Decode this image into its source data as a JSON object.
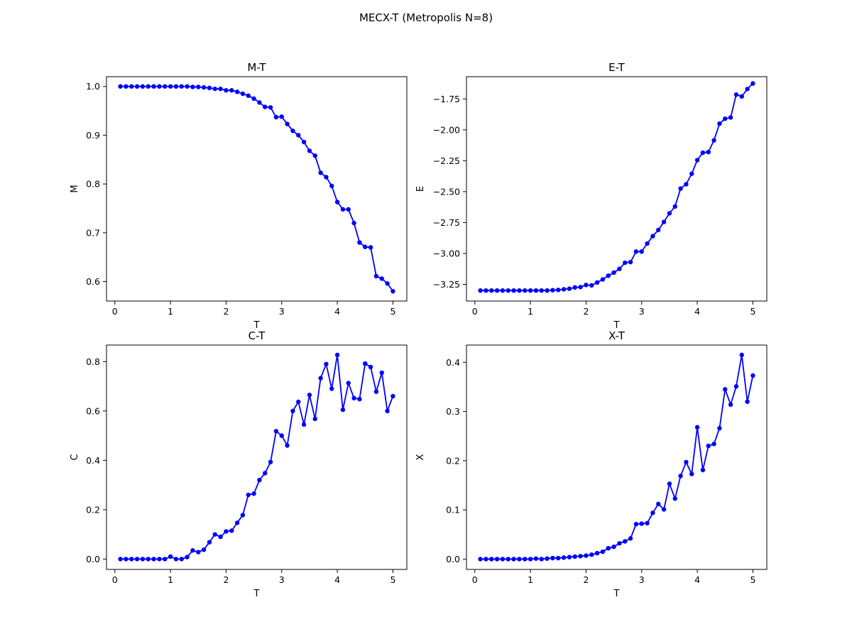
{
  "figure": {
    "suptitle": "MECX-T (Metropolis N=8)"
  },
  "chart_data": [
    {
      "type": "line",
      "title": "M-T",
      "xlabel": "T",
      "ylabel": "M",
      "xlim": [
        -0.15,
        5.25
      ],
      "ylim": [
        0.56,
        1.02
      ],
      "xticks": [
        0,
        1,
        2,
        3,
        4,
        5
      ],
      "yticks": [
        0.6,
        0.7,
        0.8,
        0.9,
        1.0
      ],
      "ytick_labels": [
        "0.6",
        "0.7",
        "0.8",
        "0.9",
        "1.0"
      ],
      "grid": false,
      "color": "#0000ff",
      "x": [
        0.1,
        0.2,
        0.3,
        0.4,
        0.5,
        0.6,
        0.7,
        0.8,
        0.9,
        1.0,
        1.1,
        1.2,
        1.3,
        1.4,
        1.5,
        1.6,
        1.7,
        1.8,
        1.9,
        2.0,
        2.1,
        2.2,
        2.3,
        2.4,
        2.5,
        2.6,
        2.7,
        2.8,
        2.9,
        3.0,
        3.1,
        3.2,
        3.3,
        3.4,
        3.5,
        3.6,
        3.7,
        3.8,
        3.9,
        4.0,
        4.1,
        4.2,
        4.3,
        4.4,
        4.5,
        4.6,
        4.7,
        4.8,
        4.9,
        5.0
      ],
      "y": [
        1.0,
        1.0,
        1.0,
        1.0,
        1.0,
        1.0,
        1.0,
        1.0,
        1.0,
        1.0,
        1.0,
        1.0,
        1.0,
        0.999,
        0.999,
        0.998,
        0.997,
        0.995,
        0.995,
        0.992,
        0.992,
        0.989,
        0.985,
        0.981,
        0.975,
        0.967,
        0.958,
        0.957,
        0.937,
        0.938,
        0.923,
        0.909,
        0.9,
        0.886,
        0.868,
        0.858,
        0.823,
        0.814,
        0.796,
        0.763,
        0.748,
        0.748,
        0.72,
        0.68,
        0.671,
        0.67,
        0.611,
        0.606,
        0.596,
        0.58
      ]
    },
    {
      "type": "line",
      "title": "E-T",
      "xlabel": "T",
      "ylabel": "E",
      "xlim": [
        -0.15,
        5.25
      ],
      "ylim": [
        -3.385,
        -1.57
      ],
      "xticks": [
        0,
        1,
        2,
        3,
        4,
        5
      ],
      "yticks": [
        -3.25,
        -3.0,
        -2.75,
        -2.5,
        -2.25,
        -2.0,
        -1.75
      ],
      "ytick_labels": [
        "−3.25",
        "−3.00",
        "−2.75",
        "−2.50",
        "−2.25",
        "−2.00",
        "−1.75"
      ],
      "grid": false,
      "color": "#0000ff",
      "x": [
        0.1,
        0.2,
        0.3,
        0.4,
        0.5,
        0.6,
        0.7,
        0.8,
        0.9,
        1.0,
        1.1,
        1.2,
        1.3,
        1.4,
        1.5,
        1.6,
        1.7,
        1.8,
        1.9,
        2.0,
        2.1,
        2.2,
        2.3,
        2.4,
        2.5,
        2.6,
        2.7,
        2.8,
        2.9,
        3.0,
        3.1,
        3.2,
        3.3,
        3.4,
        3.5,
        3.6,
        3.7,
        3.8,
        3.9,
        4.0,
        4.1,
        4.2,
        4.3,
        4.4,
        4.5,
        4.6,
        4.7,
        4.8,
        4.9,
        5.0
      ],
      "y": [
        -3.3,
        -3.3,
        -3.3,
        -3.3,
        -3.3,
        -3.3,
        -3.3,
        -3.3,
        -3.3,
        -3.3,
        -3.3,
        -3.3,
        -3.3,
        -3.297,
        -3.295,
        -3.29,
        -3.285,
        -3.275,
        -3.272,
        -3.255,
        -3.258,
        -3.235,
        -3.21,
        -3.18,
        -3.155,
        -3.125,
        -3.075,
        -3.07,
        -2.985,
        -2.985,
        -2.92,
        -2.86,
        -2.81,
        -2.745,
        -2.675,
        -2.62,
        -2.475,
        -2.44,
        -2.355,
        -2.245,
        -2.185,
        -2.18,
        -2.085,
        -1.95,
        -1.91,
        -1.9,
        -1.715,
        -1.73,
        -1.67,
        -1.625
      ]
    },
    {
      "type": "line",
      "title": "C-T",
      "xlabel": "T",
      "ylabel": "C",
      "xlim": [
        -0.15,
        5.25
      ],
      "ylim": [
        -0.042,
        0.867
      ],
      "xticks": [
        0,
        1,
        2,
        3,
        4,
        5
      ],
      "yticks": [
        0.0,
        0.2,
        0.4,
        0.6,
        0.8
      ],
      "ytick_labels": [
        "0.0",
        "0.2",
        "0.4",
        "0.6",
        "0.8"
      ],
      "grid": false,
      "color": "#0000ff",
      "x": [
        0.1,
        0.2,
        0.3,
        0.4,
        0.5,
        0.6,
        0.7,
        0.8,
        0.9,
        1.0,
        1.1,
        1.2,
        1.3,
        1.4,
        1.5,
        1.6,
        1.7,
        1.8,
        1.9,
        2.0,
        2.1,
        2.2,
        2.3,
        2.4,
        2.5,
        2.6,
        2.7,
        2.8,
        2.9,
        3.0,
        3.1,
        3.2,
        3.3,
        3.4,
        3.5,
        3.6,
        3.7,
        3.8,
        3.9,
        4.0,
        4.1,
        4.2,
        4.3,
        4.4,
        4.5,
        4.6,
        4.7,
        4.8,
        4.9,
        5.0
      ],
      "y": [
        0.0,
        0.0,
        0.0,
        0.0,
        0.0,
        0.0,
        0.0,
        0.0,
        0.0,
        0.01,
        0.0,
        0.0,
        0.008,
        0.035,
        0.028,
        0.038,
        0.068,
        0.1,
        0.09,
        0.112,
        0.115,
        0.147,
        0.178,
        0.26,
        0.265,
        0.32,
        0.348,
        0.393,
        0.518,
        0.5,
        0.46,
        0.6,
        0.637,
        0.545,
        0.665,
        0.568,
        0.733,
        0.79,
        0.69,
        0.827,
        0.605,
        0.713,
        0.652,
        0.648,
        0.792,
        0.778,
        0.678,
        0.755,
        0.6,
        0.66
      ]
    },
    {
      "type": "line",
      "title": "X-T",
      "xlabel": "T",
      "ylabel": "X",
      "xlim": [
        -0.15,
        5.25
      ],
      "ylim": [
        -0.021,
        0.435
      ],
      "xticks": [
        0,
        1,
        2,
        3,
        4,
        5
      ],
      "yticks": [
        0.0,
        0.1,
        0.2,
        0.3,
        0.4
      ],
      "ytick_labels": [
        "0.0",
        "0.1",
        "0.2",
        "0.3",
        "0.4"
      ],
      "grid": false,
      "color": "#0000ff",
      "x": [
        0.1,
        0.2,
        0.3,
        0.4,
        0.5,
        0.6,
        0.7,
        0.8,
        0.9,
        1.0,
        1.1,
        1.2,
        1.3,
        1.4,
        1.5,
        1.6,
        1.7,
        1.8,
        1.9,
        2.0,
        2.1,
        2.2,
        2.3,
        2.4,
        2.5,
        2.6,
        2.7,
        2.8,
        2.9,
        3.0,
        3.1,
        3.2,
        3.3,
        3.4,
        3.5,
        3.6,
        3.7,
        3.8,
        3.9,
        4.0,
        4.1,
        4.2,
        4.3,
        4.4,
        4.5,
        4.6,
        4.7,
        4.8,
        4.9,
        5.0
      ],
      "y": [
        0.0,
        0.0,
        0.0,
        0.0,
        0.0,
        0.0,
        0.0,
        0.0,
        0.0,
        0.0,
        0.001,
        0.0,
        0.001,
        0.002,
        0.002,
        0.003,
        0.004,
        0.005,
        0.006,
        0.007,
        0.009,
        0.012,
        0.015,
        0.022,
        0.025,
        0.032,
        0.036,
        0.042,
        0.071,
        0.072,
        0.073,
        0.094,
        0.112,
        0.101,
        0.153,
        0.123,
        0.169,
        0.197,
        0.173,
        0.268,
        0.181,
        0.23,
        0.234,
        0.266,
        0.345,
        0.314,
        0.351,
        0.415,
        0.32,
        0.373
      ]
    }
  ]
}
